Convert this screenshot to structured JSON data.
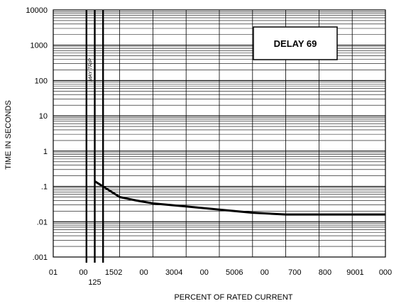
{
  "chart_data": {
    "type": "line",
    "title": "DELAY 69",
    "xlabel": "PERCENT OF RATED CURRENT",
    "ylabel": "TIME IN SECONDS",
    "y_scale": "log",
    "ylim": [
      0.001,
      10000
    ],
    "y_ticks": [
      {
        "value": 10000,
        "label": "10000"
      },
      {
        "value": 1000,
        "label": "1000"
      },
      {
        "value": 100,
        "label": "100"
      },
      {
        "value": 10,
        "label": "10"
      },
      {
        "value": 1,
        "label": "1"
      },
      {
        "value": 0.1,
        "label": ".1"
      },
      {
        "value": 0.01,
        "label": ".01"
      },
      {
        "value": 0.001,
        "label": ".001"
      }
    ],
    "xlim": [
      0,
      1000
    ],
    "x_tick_labels": [
      "01",
      "00",
      "1502",
      "00",
      "3004",
      "00",
      "5006",
      "00",
      "700",
      "800",
      "9001",
      "000"
    ],
    "x_extra_label": {
      "value": 125,
      "label": "125"
    },
    "annotation": {
      "text": "MAY TRIP",
      "x": 125
    },
    "bold_verticals": [
      100,
      125,
      150
    ],
    "series": [
      {
        "points": [
          {
            "x": 125,
            "y": 0.14
          },
          {
            "x": 150,
            "y": 0.1
          },
          {
            "x": 200,
            "y": 0.05
          },
          {
            "x": 250,
            "y": 0.04
          },
          {
            "x": 300,
            "y": 0.033
          },
          {
            "x": 400,
            "y": 0.027
          },
          {
            "x": 500,
            "y": 0.022
          },
          {
            "x": 600,
            "y": 0.018
          },
          {
            "x": 700,
            "y": 0.016
          },
          {
            "x": 1000,
            "y": 0.016
          }
        ]
      }
    ]
  }
}
